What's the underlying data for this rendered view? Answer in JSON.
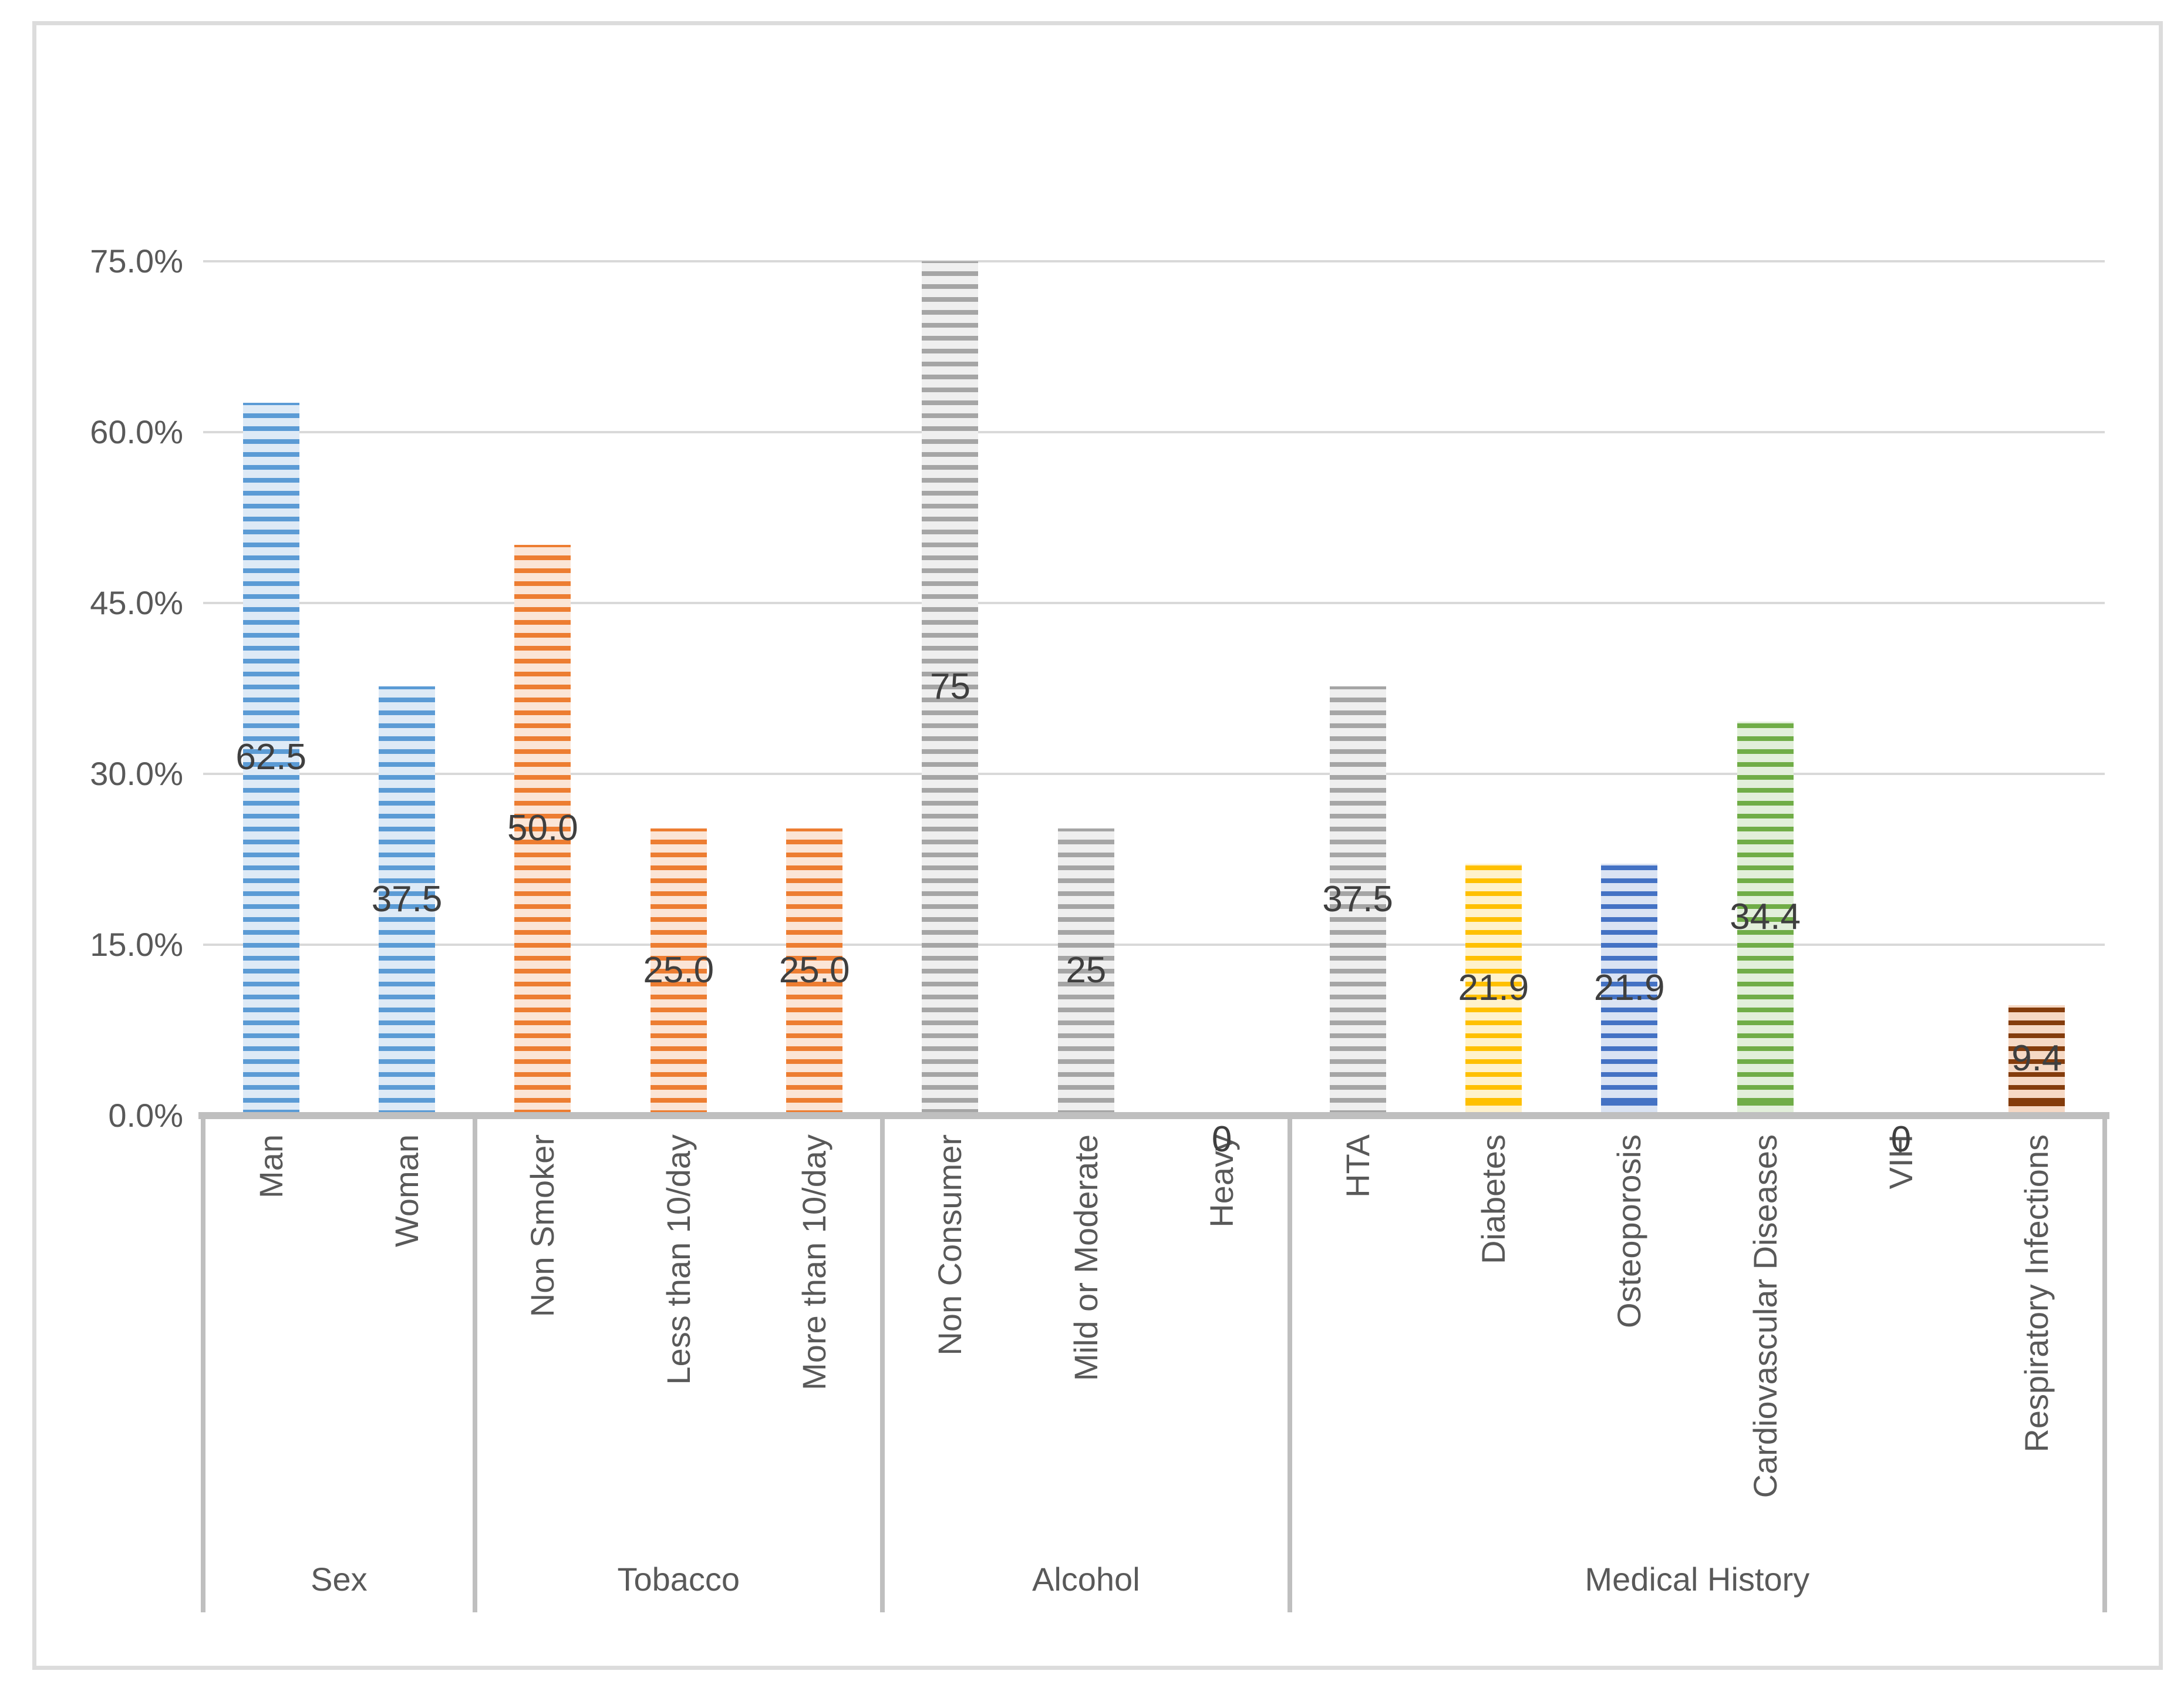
{
  "chart_data": {
    "type": "bar",
    "title": "",
    "xlabel": "",
    "ylabel": "",
    "legend": "none",
    "grid": true,
    "y_axis": {
      "min": 0,
      "max": 75,
      "step": 15,
      "unit": "%",
      "ticks": [
        "0.0%",
        "15.0%",
        "30.0%",
        "45.0%",
        "60.0%",
        "75.0%"
      ]
    },
    "colors": {
      "gridline": "#d9d9d9",
      "axis_line": "#bfbfbf",
      "chart_border": "#dcdcdc",
      "tick_text": "#595959",
      "category_text": "#595959",
      "group_text": "#595959",
      "data_label_text": "#3f3f3f"
    },
    "groups": [
      {
        "label": "Sex",
        "bars": [
          {
            "category": "Man",
            "value": 62.5,
            "value_label": "62.5",
            "stripe": "#5b9bd5",
            "fill": "#deeaf6"
          },
          {
            "category": "Woman",
            "value": 37.5,
            "value_label": "37.5",
            "stripe": "#5b9bd5",
            "fill": "#deeaf6"
          }
        ]
      },
      {
        "label": "Tobacco",
        "bars": [
          {
            "category": "Non Smoker",
            "value": 50.0,
            "value_label": "50.0",
            "stripe": "#ed7d31",
            "fill": "#fbe5d6"
          },
          {
            "category": "Less than 10/day",
            "value": 25.0,
            "value_label": "25.0",
            "stripe": "#ed7d31",
            "fill": "#fbe5d6"
          },
          {
            "category": "More than 10/day",
            "value": 25.0,
            "value_label": "25.0",
            "stripe": "#ed7d31",
            "fill": "#fbe5d6"
          }
        ]
      },
      {
        "label": "Alcohol",
        "bars": [
          {
            "category": "Non Consumer",
            "value": 75,
            "value_label": "75",
            "stripe": "#a5a5a5",
            "fill": "#efefef"
          },
          {
            "category": "Mild or Moderate",
            "value": 25,
            "value_label": "25",
            "stripe": "#a5a5a5",
            "fill": "#efefef"
          },
          {
            "category": "Heavy",
            "value": 0,
            "value_label": "0",
            "stripe": "#a5a5a5",
            "fill": "#efefef"
          }
        ]
      },
      {
        "label": "Medical History",
        "bars": [
          {
            "category": "HTA",
            "value": 37.5,
            "value_label": "37.5",
            "stripe": "#a5a5a5",
            "fill": "#efefef"
          },
          {
            "category": "Diabetes",
            "value": 21.9,
            "value_label": "21.9",
            "stripe": "#ffc000",
            "fill": "#fff2cc"
          },
          {
            "category": "Osteoporosis",
            "value": 21.9,
            "value_label": "21.9",
            "stripe": "#4472c4",
            "fill": "#dae3f3"
          },
          {
            "category": "Cardiovascular Diseases",
            "value": 34.4,
            "value_label": "34.4",
            "stripe": "#70ad47",
            "fill": "#e2efda"
          },
          {
            "category": "VIH",
            "value": 0,
            "value_label": "0",
            "stripe": "#a5a5a5",
            "fill": "#efefef"
          },
          {
            "category": "Respiratory Infections",
            "value": 9.4,
            "value_label": "9.4",
            "stripe": "#843c0c",
            "fill": "#f6d9c5"
          }
        ]
      }
    ]
  }
}
